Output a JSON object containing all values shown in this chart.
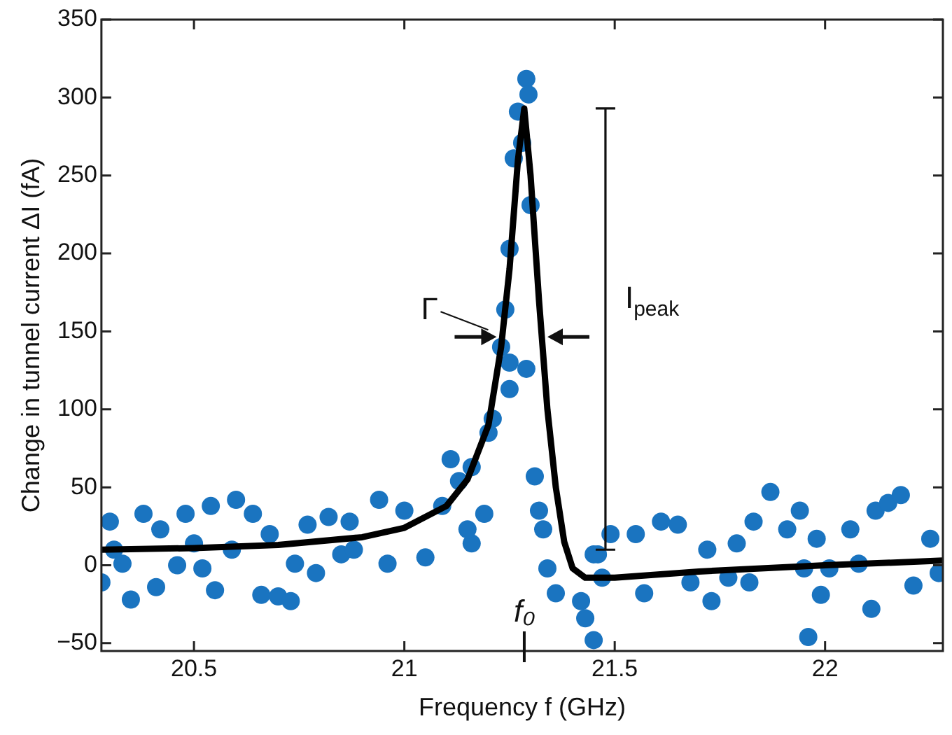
{
  "chart_data": {
    "type": "scatter",
    "xlabel": "Frequency f (GHz)",
    "ylabel": "Change in tunnel current ΔI (fA)",
    "xlim": [
      20.28,
      22.28
    ],
    "ylim": [
      -55,
      350
    ],
    "xticks": [
      20.5,
      21,
      21.5,
      22
    ],
    "yticks": [
      -50,
      0,
      50,
      100,
      150,
      200,
      250,
      300,
      350
    ],
    "series": [
      {
        "marker": "circle",
        "color": "#1a74c0",
        "x": [
          20.28,
          20.3,
          20.31,
          20.35,
          20.38,
          20.41,
          20.42,
          20.48,
          20.46,
          20.54,
          20.55,
          20.6,
          20.64,
          20.52,
          20.66,
          20.7,
          20.73,
          20.77,
          20.82,
          20.79,
          20.85,
          20.87,
          20.59,
          20.5,
          20.33,
          20.68,
          20.74,
          21.29,
          21.295,
          21.27,
          21.28,
          21.26,
          21.3,
          21.25,
          21.24,
          21.23,
          21.25,
          21.29,
          21.25,
          21.21,
          21.2,
          21.11,
          21.16,
          21.13,
          21.19,
          21.16,
          21.31,
          21.32,
          21.33,
          21.34,
          21.36,
          21.42,
          21.43,
          21.45,
          20.94,
          21.0,
          21.05,
          20.96,
          20.88,
          21.09,
          21.15,
          21.46,
          21.47,
          21.45,
          21.49,
          21.55,
          21.61,
          21.65,
          21.57,
          21.72,
          21.73,
          21.68,
          21.79,
          21.83,
          21.87,
          21.82,
          21.91,
          21.94,
          21.96,
          21.99,
          21.98,
          22.06,
          22.08,
          22.11,
          22.12,
          22.15,
          22.18,
          22.21,
          22.25,
          22.27,
          21.77,
          21.95,
          22.01
        ],
        "values": [
          -11,
          28,
          10,
          -22,
          33,
          -14,
          23,
          33,
          0,
          38,
          -16,
          42,
          33,
          -2,
          -19,
          -20,
          -23,
          26,
          31,
          -5,
          7,
          28,
          10,
          14,
          1,
          20,
          1,
          312,
          302,
          291,
          271,
          261,
          231,
          203,
          164,
          140,
          130,
          126,
          113,
          94,
          85,
          68,
          63,
          54,
          33,
          14,
          57,
          35,
          23,
          -2,
          -18,
          -23,
          -34,
          -48,
          42,
          35,
          5,
          1,
          10,
          38,
          23,
          7,
          -8,
          7,
          20,
          20,
          28,
          26,
          -18,
          10,
          -23,
          -11,
          14,
          28,
          47,
          -11,
          23,
          35,
          -46,
          -19,
          17,
          23,
          1,
          -28,
          35,
          40,
          45,
          -13,
          17,
          -5,
          -8,
          -2,
          -2
        ]
      },
      {
        "type": "line",
        "marker": "none",
        "line_style": "solid",
        "color": "#000000",
        "x": [
          20.28,
          20.5,
          20.7,
          20.9,
          21.0,
          21.1,
          21.15,
          21.2,
          21.23,
          21.25,
          21.27,
          21.285,
          21.3,
          21.32,
          21.34,
          21.36,
          21.38,
          21.4,
          21.43,
          21.5,
          21.7,
          22.0,
          22.28
        ],
        "values": [
          10,
          11,
          13,
          18,
          24,
          38,
          55,
          90,
          140,
          190,
          260,
          293,
          250,
          170,
          100,
          50,
          15,
          -2,
          -8,
          -8,
          -4,
          0,
          3
        ]
      }
    ],
    "annotations": [
      "Γ",
      "I$_{peak}$",
      "f₀"
    ]
  }
}
